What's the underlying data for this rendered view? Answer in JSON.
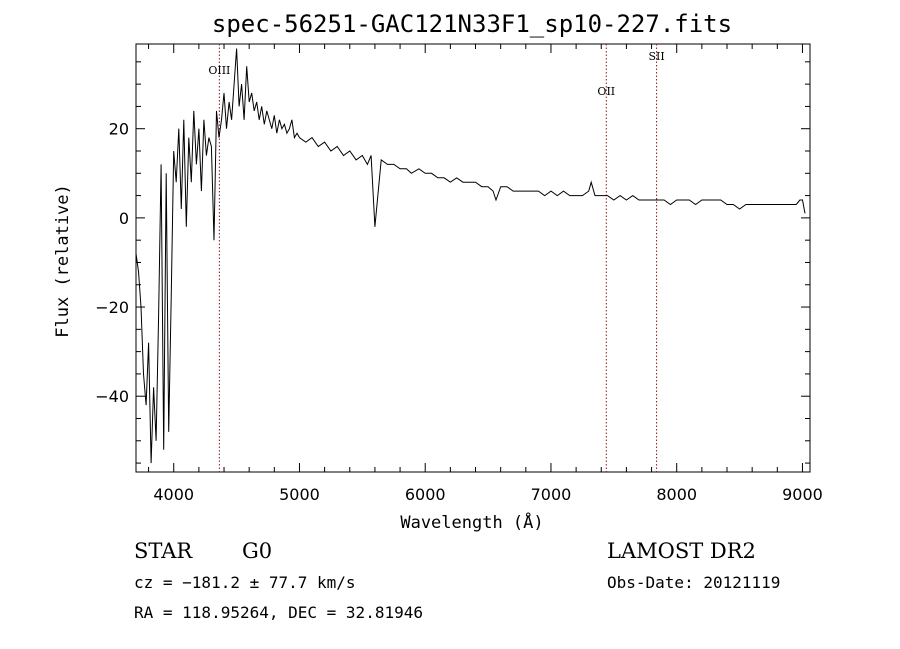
{
  "chart_data": {
    "type": "line",
    "title": "spec-56251-GAC121N33F1_sp10-227.fits",
    "xlabel": "Wavelength (Å)",
    "ylabel": "Flux (relative)",
    "xlim": [
      3700,
      9060
    ],
    "ylim": [
      -57,
      39
    ],
    "xticks": [
      4000,
      5000,
      6000,
      7000,
      8000,
      9000
    ],
    "yticks": [
      -40,
      -20,
      0,
      20
    ],
    "xtick_labels": [
      "4000",
      "5000",
      "6000",
      "7000",
      "8000",
      "9000"
    ],
    "ytick_labels": [
      "−40",
      "−20",
      "0",
      "20"
    ],
    "grid": false,
    "series": [
      {
        "x": [
          3700,
          3720,
          3740,
          3760,
          3780,
          3800,
          3820,
          3840,
          3860,
          3880,
          3900,
          3920,
          3940,
          3960,
          3980,
          4000,
          4020,
          4040,
          4060,
          4080,
          4100,
          4120,
          4140,
          4160,
          4180,
          4200,
          4220,
          4240,
          4260,
          4280,
          4300,
          4320,
          4340,
          4360,
          4380,
          4400,
          4420,
          4440,
          4460,
          4480,
          4500,
          4520,
          4540,
          4560,
          4580,
          4600,
          4620,
          4640,
          4660,
          4680,
          4700,
          4720,
          4740,
          4760,
          4780,
          4800,
          4820,
          4840,
          4860,
          4880,
          4900,
          4920,
          4940,
          4960,
          4980,
          5000,
          5050,
          5100,
          5150,
          5200,
          5250,
          5300,
          5350,
          5400,
          5450,
          5500,
          5540,
          5570,
          5600,
          5650,
          5700,
          5750,
          5800,
          5850,
          5890,
          5950,
          6000,
          6050,
          6100,
          6150,
          6200,
          6250,
          6300,
          6350,
          6400,
          6450,
          6500,
          6540,
          6563,
          6600,
          6650,
          6700,
          6750,
          6800,
          6850,
          6900,
          6950,
          7000,
          7050,
          7100,
          7150,
          7200,
          7250,
          7300,
          7320,
          7350,
          7400,
          7450,
          7500,
          7550,
          7600,
          7650,
          7700,
          7750,
          7800,
          7850,
          7900,
          7950,
          8000,
          8050,
          8100,
          8150,
          8200,
          8250,
          8300,
          8350,
          8400,
          8450,
          8500,
          8550,
          8600,
          8650,
          8700,
          8750,
          8800,
          8850,
          8900,
          8950,
          8980,
          9000,
          9020
        ],
        "y": [
          -8,
          -12,
          -20,
          -35,
          -42,
          -28,
          -55,
          -38,
          -50,
          -22,
          12,
          -52,
          10,
          -48,
          -18,
          15,
          8,
          20,
          2,
          22,
          -2,
          18,
          8,
          24,
          12,
          20,
          6,
          22,
          14,
          18,
          16,
          -5,
          24,
          18,
          22,
          28,
          20,
          26,
          22,
          30,
          38,
          25,
          30,
          22,
          34,
          26,
          28,
          24,
          26,
          22,
          25,
          21,
          24,
          22,
          20,
          23,
          19,
          22,
          20,
          21,
          19,
          20,
          22,
          18,
          19,
          18,
          17,
          18,
          16,
          17,
          15,
          16,
          14,
          15,
          13,
          14,
          12,
          14,
          -2,
          13,
          12,
          12,
          11,
          11,
          10,
          11,
          10,
          10,
          9,
          9,
          8,
          9,
          8,
          8,
          8,
          7,
          7,
          6,
          4,
          7,
          7,
          6,
          6,
          6,
          6,
          6,
          5,
          6,
          5,
          6,
          5,
          5,
          5,
          6,
          8,
          5,
          5,
          5,
          4,
          5,
          4,
          5,
          4,
          4,
          4,
          4,
          4,
          3,
          4,
          4,
          4,
          3,
          4,
          4,
          4,
          4,
          3,
          3,
          2,
          3,
          3,
          3,
          3,
          3,
          3,
          3,
          3,
          3,
          4,
          4,
          1
        ]
      }
    ],
    "lines": [
      {
        "x": 4363,
        "label": "OIII"
      },
      {
        "x": 7440,
        "label": "OII"
      },
      {
        "x": 7840,
        "label": "SII"
      }
    ]
  },
  "info": {
    "class": "STAR",
    "subclass": "G0",
    "survey": "LAMOST DR2",
    "cz": "cz = −181.2 ± 77.7 km/s",
    "obs_date": "Obs-Date: 20121119",
    "coords": "RA = 118.95264, DEC =  32.81946"
  }
}
